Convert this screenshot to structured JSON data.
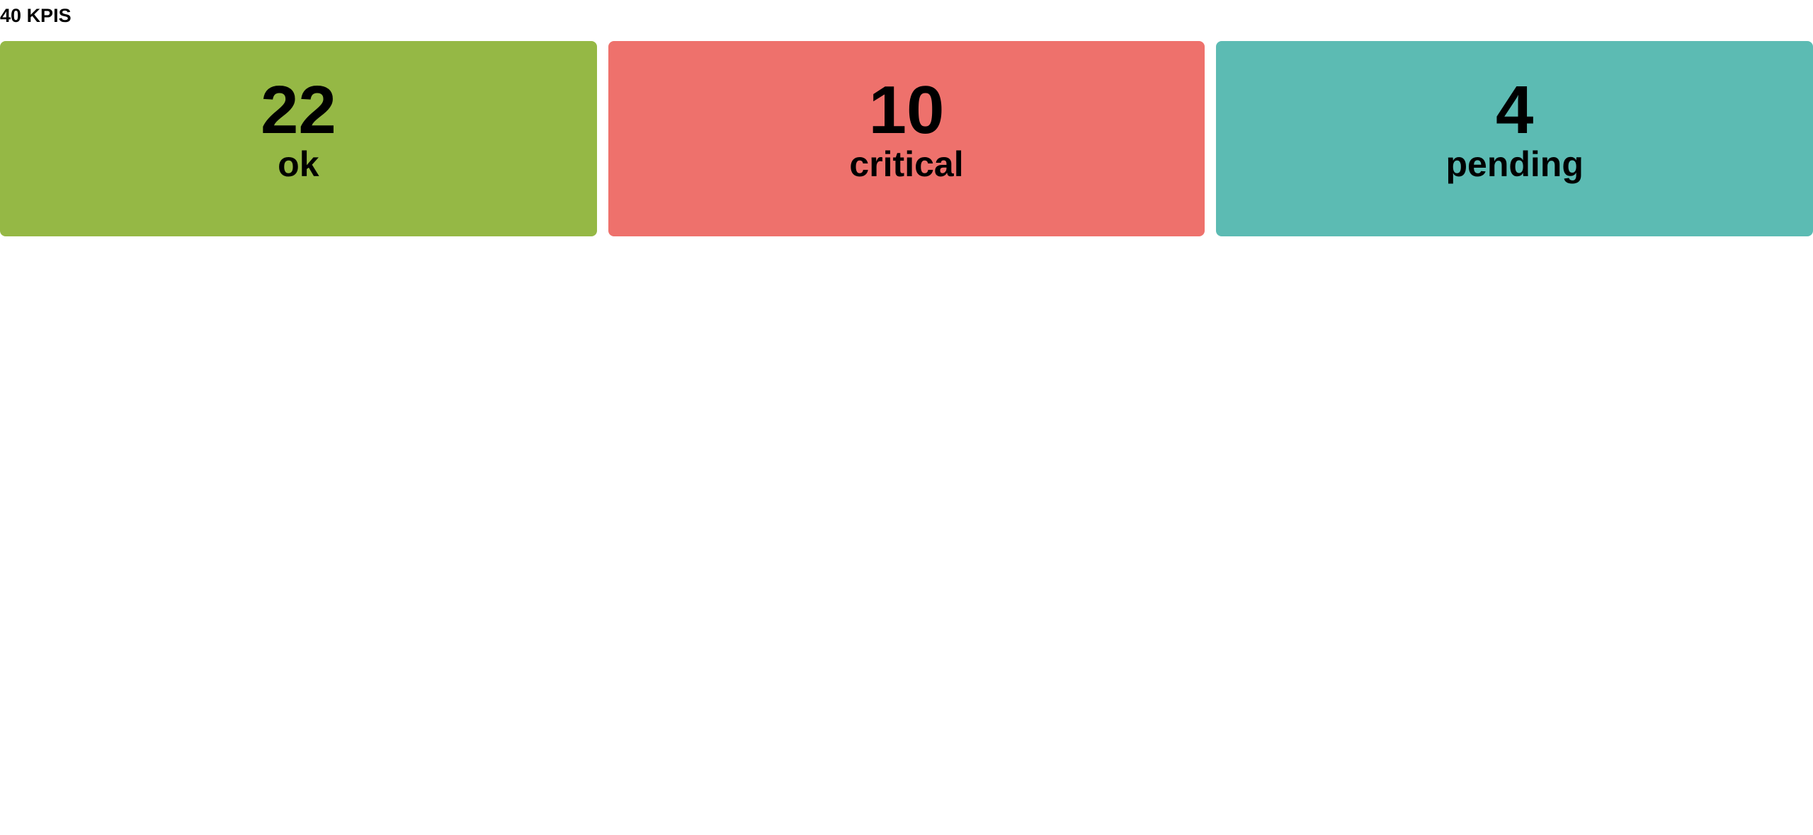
{
  "header": {
    "count": "40",
    "label": "KPIS"
  },
  "cards": [
    {
      "value": "22",
      "label": "ok",
      "color": "#95b845"
    },
    {
      "value": "10",
      "label": "critical",
      "color": "#ee716c"
    },
    {
      "value": "4",
      "label": "pending",
      "color": "#5cbbb3"
    }
  ]
}
